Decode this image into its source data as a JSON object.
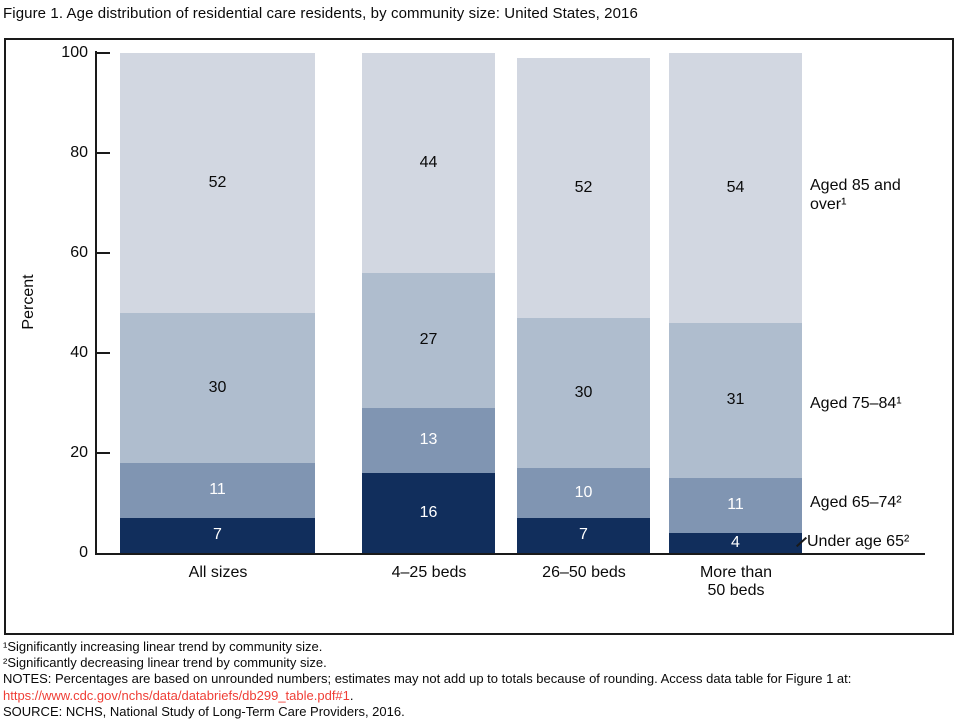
{
  "title": "Figure 1. Age distribution of residential care residents, by community size: United States, 2016",
  "chart": {
    "ylabel": "Percent",
    "ytick_values": [
      0,
      20,
      40,
      60,
      80,
      100
    ]
  },
  "chart_data": {
    "type": "bar",
    "stacked": true,
    "title": "Figure 1. Age distribution of residential care residents, by community size: United States, 2016",
    "categories": [
      "All sizes",
      "4–25 beds",
      "26–50 beds",
      "More than\n50 beds"
    ],
    "series": [
      {
        "name": "Under age 65²",
        "values": [
          7,
          16,
          7,
          4
        ],
        "color": "#112E5C",
        "label_color": "#ffffff"
      },
      {
        "name": "Aged 65–74²",
        "values": [
          11,
          13,
          10,
          11
        ],
        "color": "#8095B2",
        "label_color": "#ffffff"
      },
      {
        "name": "Aged 75–84¹",
        "values": [
          30,
          27,
          30,
          31
        ],
        "color": "#AFBDCE",
        "label_color": "#0a0a0a"
      },
      {
        "name": "Aged 85 and over¹",
        "values": [
          52,
          44,
          52,
          54
        ],
        "color": "#D2D7E1",
        "label_color": "#0a0a0a"
      }
    ],
    "xlabel": "",
    "ylabel": "Percent",
    "ylim": [
      0,
      100
    ],
    "grid": false,
    "legend_position": "right-of-bars",
    "colors": {
      "under_65": "#112E5C",
      "aged_65_74": "#8095B2",
      "aged_75_84": "#AFBDCE",
      "aged_85_over": "#D2D7E1"
    }
  },
  "footnotes": {
    "line1": "¹Significantly increasing linear trend by community size.",
    "line2": "²Significantly decreasing linear trend by community size.",
    "notes": "NOTES: Percentages are based on unrounded numbers; estimates may not add up to totals because of rounding. Access data table for Figure 1 at:",
    "link": "https://www.cdc.gov/nchs/data/databriefs/db299_table.pdf#1",
    "link_suffix": ".",
    "source": "SOURCE: NCHS, National Study of Long-Term Care Providers, 2016.",
    "link_color": "#EF3E36"
  }
}
